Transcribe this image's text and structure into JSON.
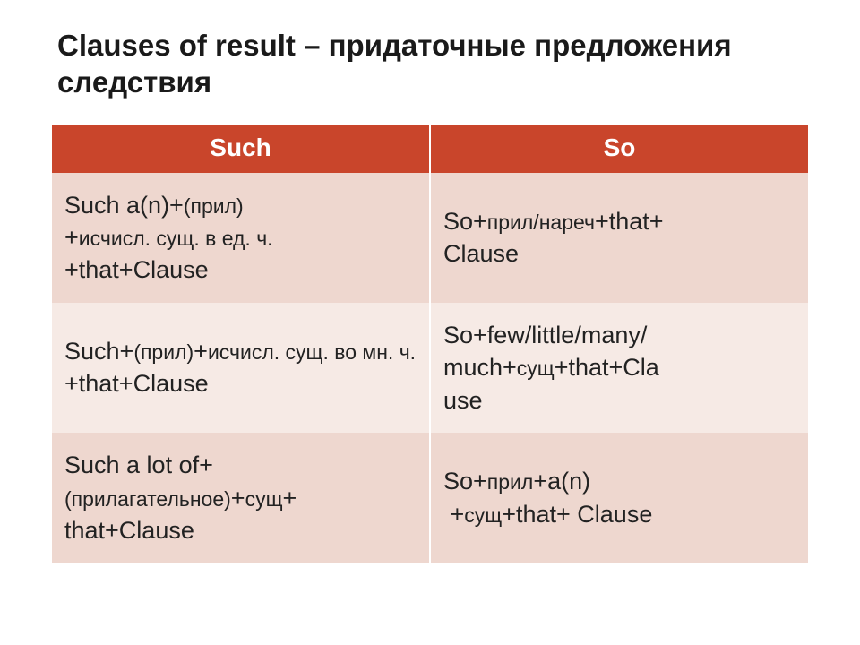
{
  "title": "Clauses of result – придаточные предложения следствия",
  "header_bg": "#c9452b",
  "header_text_color": "#ffffff",
  "row_colors": [
    "#eed7cf",
    "#f6eae5",
    "#eed7cf"
  ],
  "columns": [
    "Such",
    "So"
  ],
  "rows": [
    {
      "left_html": "Such a(n)+<span class='small'>(прил)</span><br>+<span class='small'>исчисл. сущ. в ед. ч.</span><br>+that+Clause",
      "right_html": "So+<span class='small'>прил/нареч</span>+that+<br>Clause"
    },
    {
      "left_html": "Such+<span class='small'>(прил)</span>+<span class='small'>исчисл. сущ. во мн. ч.</span><br>+that+Clause",
      "right_html": "So+few/little/many/<br>much+<span class='small'>сущ</span>+that+Cla<br>use"
    },
    {
      "left_html": "Such a lot of+<br><span class='small'>(прилагательное)</span>+<span class='small'>сущ</span>+<br>that+Clause",
      "right_html": "So+<span class='small'>прил</span>+a(n)<br>&nbsp;+<span class='small'>сущ</span>+that+ Clause"
    }
  ]
}
